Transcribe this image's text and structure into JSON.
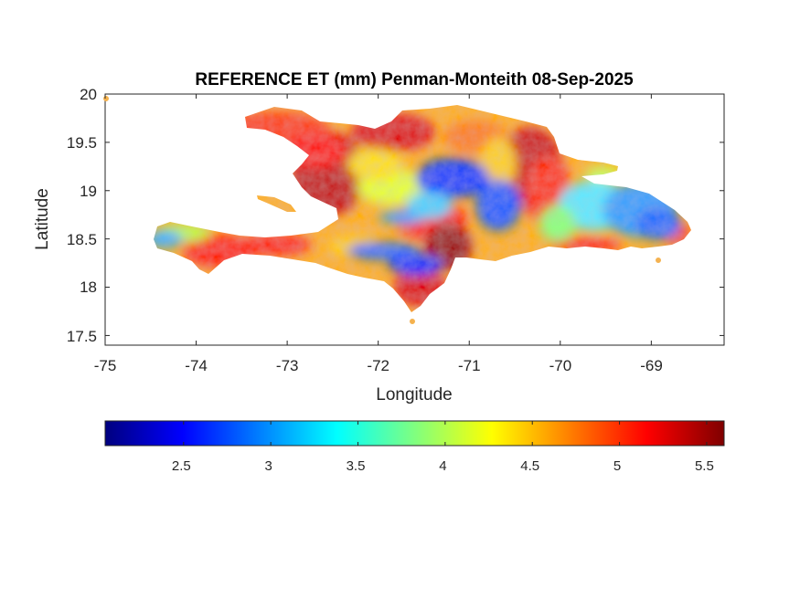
{
  "title": "REFERENCE ET (mm) Penman-Monteith 08-Sep-2025",
  "map": {
    "xlabel": "Longitude",
    "ylabel": "Latitude",
    "xlim": [
      -75,
      -68.2
    ],
    "ylim": [
      17.4,
      20
    ],
    "xticks": [
      -75,
      -74,
      -73,
      -72,
      -71,
      -70,
      -69
    ],
    "yticks": [
      17.5,
      18,
      18.5,
      19,
      19.5,
      20
    ],
    "xtick_labels": [
      "-75",
      "-74",
      "-73",
      "-72",
      "-71",
      "-70",
      "-69"
    ],
    "ytick_labels": [
      "17.5",
      "18",
      "18.5",
      "19",
      "19.5",
      "20"
    ]
  },
  "colorbar": {
    "colormap": "jet",
    "range": [
      2.05,
      5.6
    ],
    "ticks": [
      2.5,
      3,
      3.5,
      4,
      4.5,
      5,
      5.5
    ],
    "tick_labels": [
      "2.5",
      "3",
      "3.5",
      "4",
      "4.5",
      "5",
      "5.5"
    ],
    "orientation": "horizontal",
    "placement": "below-map"
  }
}
